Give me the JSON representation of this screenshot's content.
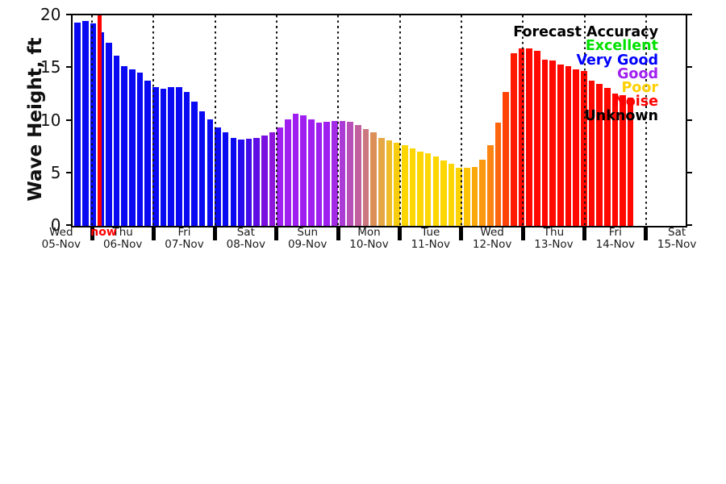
{
  "chart_data": {
    "type": "bar",
    "title": "",
    "ylabel": "Wave Height, ft",
    "ylim": [
      0,
      20
    ],
    "yticks": [
      0,
      5,
      10,
      15,
      20
    ],
    "grid": "vertical dotted lines at day boundaries",
    "bar_interval": "3-hour",
    "values": [
      19.3,
      19.5,
      19.2,
      18.4,
      17.4,
      16.2,
      15.2,
      14.9,
      14.6,
      13.8,
      13.2,
      13.0,
      13.2,
      13.2,
      12.7,
      11.8,
      10.9,
      10.1,
      9.4,
      8.9,
      8.4,
      8.2,
      8.3,
      8.4,
      8.6,
      8.9,
      9.4,
      10.1,
      10.7,
      10.5,
      10.1,
      9.8,
      9.9,
      10.0,
      10.0,
      9.9,
      9.6,
      9.2,
      8.9,
      8.4,
      8.1,
      7.9,
      7.7,
      7.4,
      7.1,
      6.9,
      6.6,
      6.2,
      5.9,
      5.5,
      5.5,
      5.6,
      6.3,
      7.7,
      9.8,
      12.7,
      16.4,
      16.9,
      16.9,
      16.6,
      15.8,
      15.7,
      15.3,
      15.2,
      14.9,
      14.7,
      13.8,
      13.5,
      13.1,
      12.6,
      12.4,
      12.2
    ],
    "colors": [
      "#0a0af2",
      "#0a0af2",
      "#0a0af2",
      "#0a0af2",
      "#0a0af2",
      "#0a0af2",
      "#0a0af2",
      "#0a0af2",
      "#0a0af2",
      "#0a0af2",
      "#0a0af2",
      "#0a0af2",
      "#0a0af2",
      "#0a0af2",
      "#0a0af2",
      "#0a0af2",
      "#0a0af2",
      "#0a0af2",
      "#0a0af2",
      "#0a0af2",
      "#0a0af2",
      "#2609ee",
      "#420be9",
      "#5e0ee4",
      "#7a10e0",
      "#8e16dc",
      "#9e1ff0",
      "#9e1ff0",
      "#9e1ff0",
      "#9e1ff0",
      "#9e1ff0",
      "#9e1ff0",
      "#9e1ff0",
      "#a22ae4",
      "#ab3bd4",
      "#b950b8",
      "#c2609f",
      "#cc7780",
      "#dc9058",
      "#e6a844",
      "#f0bc28",
      "#f8cd10",
      "#fdd603",
      "#fdd603",
      "#fdd603",
      "#fdd603",
      "#fdd603",
      "#fdd603",
      "#fdd603",
      "#fdd304",
      "#fcc308",
      "#faa90d",
      "#fa990f",
      "#fb8412",
      "#fd650c",
      "#ff4206",
      "#ff1a02",
      "#ff0800",
      "#ff0800",
      "#ff0800",
      "#ff0800",
      "#ff0800",
      "#ff0800",
      "#ff0800",
      "#ff0800",
      "#ff0800",
      "#ff0800",
      "#ff0800",
      "#ff0800",
      "#ff0800",
      "#ff0800",
      "#ff0800"
    ],
    "days": [
      {
        "name": "Wed",
        "date": "05-Nov"
      },
      {
        "name": "Thu",
        "date": "06-Nov"
      },
      {
        "name": "Fri",
        "date": "07-Nov"
      },
      {
        "name": "Sat",
        "date": "08-Nov"
      },
      {
        "name": "Sun",
        "date": "09-Nov"
      },
      {
        "name": "Mon",
        "date": "10-Nov"
      },
      {
        "name": "Tue",
        "date": "11-Nov"
      },
      {
        "name": "Wed",
        "date": "12-Nov"
      },
      {
        "name": "Thu",
        "date": "13-Nov"
      },
      {
        "name": "Fri",
        "date": "14-Nov"
      },
      {
        "name": "Sat",
        "date": "15-Nov"
      }
    ],
    "now_marker": {
      "label": "now",
      "color": "#ff0000"
    },
    "legend": {
      "title": "Forecast Accuracy",
      "title_color": "#000000",
      "position": "top-right",
      "entries": [
        {
          "label": "Excellent",
          "color": "#00e000"
        },
        {
          "label": "Very Good",
          "color": "#0000ff"
        },
        {
          "label": "Good",
          "color": "#a020f0"
        },
        {
          "label": "Poor",
          "color": "#ffd000"
        },
        {
          "label": "Noise",
          "color": "#ff0000"
        },
        {
          "label": "Unknown",
          "color": "#000000"
        }
      ]
    }
  }
}
